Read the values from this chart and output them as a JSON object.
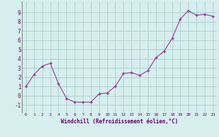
{
  "x": [
    0,
    1,
    2,
    3,
    4,
    5,
    6,
    7,
    8,
    9,
    10,
    11,
    12,
    13,
    14,
    15,
    16,
    17,
    18,
    19,
    20,
    21,
    22,
    23
  ],
  "y": [
    1.0,
    2.3,
    3.2,
    3.5,
    1.3,
    -0.3,
    -0.7,
    -0.7,
    -0.7,
    0.2,
    0.3,
    1.0,
    2.4,
    2.5,
    2.2,
    2.7,
    4.1,
    4.8,
    6.2,
    8.3,
    9.2,
    8.7,
    8.8,
    8.6
  ],
  "xlabel": "Windchill (Refroidissement éolien,°C)",
  "xlim": [
    -0.5,
    23.5
  ],
  "ylim": [
    -1.8,
    10.2
  ],
  "yticks": [
    -1,
    0,
    1,
    2,
    3,
    4,
    5,
    6,
    7,
    8,
    9
  ],
  "xticks": [
    0,
    1,
    2,
    3,
    4,
    5,
    6,
    7,
    8,
    9,
    10,
    11,
    12,
    13,
    14,
    15,
    16,
    17,
    18,
    19,
    20,
    21,
    22,
    23
  ],
  "line_color": "#993399",
  "marker_color": "#993399",
  "bg_color": "#d6eeee",
  "grid_color": "#aacccc",
  "label_color": "#660066",
  "tick_color": "#660066"
}
